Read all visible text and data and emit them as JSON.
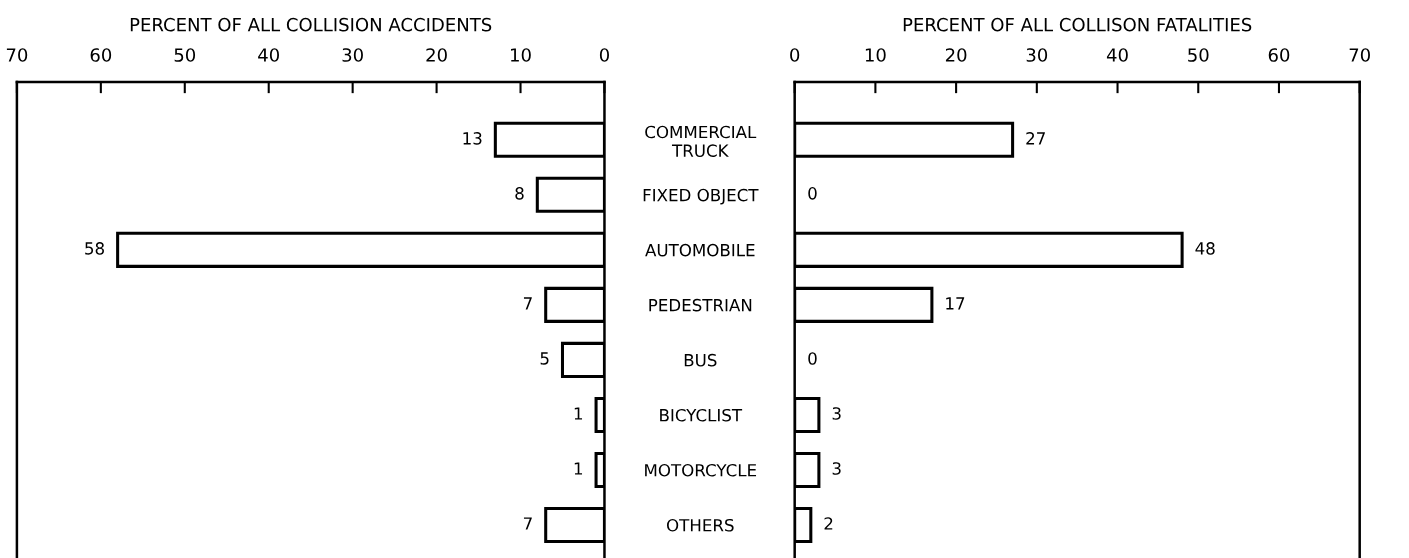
{
  "chart_data": [
    {
      "type": "bar",
      "orientation": "horizontal",
      "xlabel": "PERCENT OF ALL COLLISION ACCIDENTS",
      "categories": [
        "COMMERCIAL\nTRUCK",
        "FIXED OBJECT",
        "AUTOMOBILE",
        "PEDESTRIAN",
        "BUS",
        "BICYCLIST",
        "MOTORCYCLE",
        "OTHERS"
      ],
      "series": [
        {
          "color": "#ffffff",
          "values": [
            13,
            8,
            58,
            7,
            5,
            1,
            1,
            7
          ]
        }
      ],
      "xlim": [
        70,
        0
      ],
      "xticks": [
        70,
        60,
        50,
        40,
        30,
        20,
        10,
        0
      ],
      "data_labels": true,
      "grid": false
    },
    {
      "type": "bar",
      "orientation": "horizontal",
      "xlabel": "PERCENT OF ALL COLLISON FATALITIES",
      "categories": [
        null,
        null,
        null,
        null,
        null,
        null,
        null,
        null
      ],
      "series": [
        {
          "color": "#ffffff",
          "values": [
            27,
            0,
            48,
            17,
            0,
            3,
            3,
            2
          ]
        }
      ],
      "xlim": [
        0,
        70
      ],
      "xticks": [
        0,
        10,
        20,
        30,
        40,
        50,
        60,
        70
      ],
      "data_labels": true,
      "grid": false,
      "tick_labels": "x"
    }
  ]
}
